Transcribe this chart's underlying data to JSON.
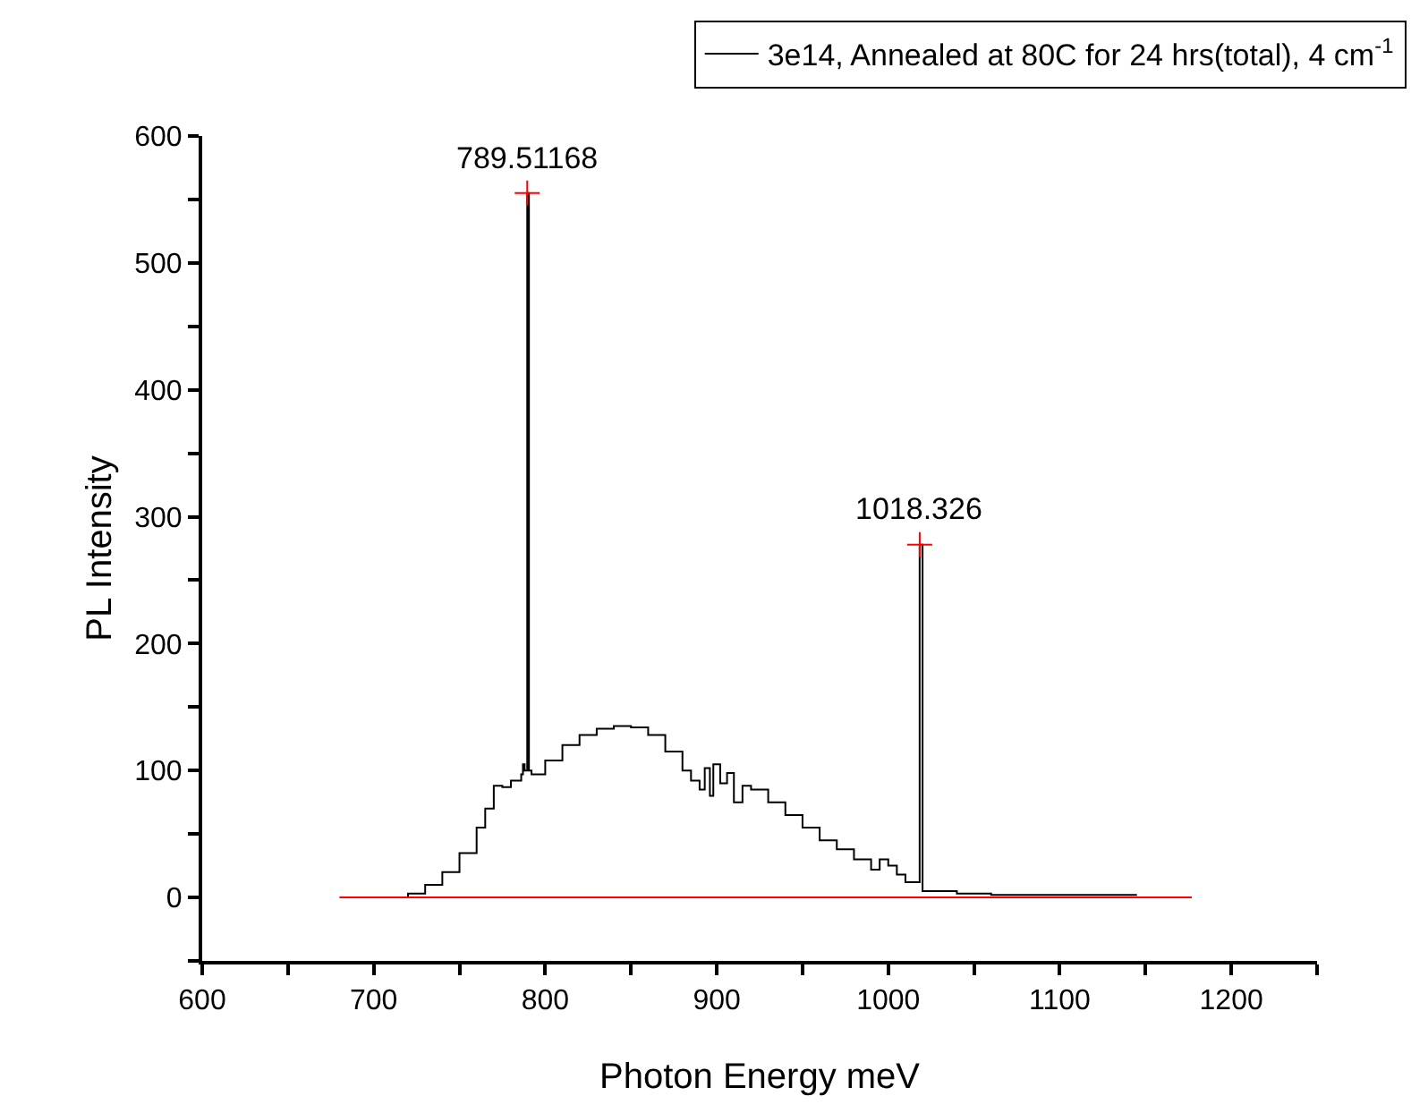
{
  "chart_data": {
    "type": "step",
    "xlabel": "Photon Energy meV",
    "ylabel": "PL Intensity",
    "xlim": [
      600,
      1250
    ],
    "ylim": [
      -50,
      600
    ],
    "xticks": [
      600,
      {
        "value": 650,
        "label": null
      },
      700,
      {
        "value": 750,
        "label": null
      },
      800,
      {
        "value": 850,
        "label": null
      },
      900,
      {
        "value": 950,
        "label": null
      },
      1000,
      {
        "value": 1050,
        "label": null
      },
      1100,
      {
        "value": 1150,
        "label": null
      },
      1200,
      {
        "value": 1250,
        "label": null
      }
    ],
    "yticks": [
      {
        "value": -50,
        "label": null
      },
      0,
      {
        "value": 50,
        "label": null
      },
      100,
      {
        "value": 150,
        "label": null
      },
      200,
      {
        "value": 250,
        "label": null
      },
      300,
      {
        "value": 350,
        "label": null
      },
      400,
      {
        "value": 450,
        "label": null
      },
      500,
      {
        "value": 550,
        "label": null
      },
      600
    ],
    "grid": false,
    "legend": "top right",
    "series": [
      {
        "name": "3e14, Annealed at 80C for 24 hrs(total), 4 cm$^{-1}$",
        "color": "#000000",
        "x": [
          708,
          720,
          730,
          740,
          750,
          760,
          765,
          770,
          775,
          780,
          786,
          787,
          788,
          789.5,
          790.5,
          792,
          800,
          810,
          820,
          830,
          840,
          850,
          860,
          870,
          880,
          885,
          890,
          893,
          896,
          898,
          902,
          906,
          910,
          915,
          920,
          930,
          940,
          950,
          960,
          970,
          980,
          990,
          995,
          1000,
          1005,
          1010,
          1015,
          1018.3,
          1020,
          1030,
          1040,
          1060,
          1100,
          1145
        ],
        "values": [
          0,
          3,
          10,
          20,
          35,
          55,
          70,
          88,
          87,
          92,
          97,
          105,
          100,
          555,
          100,
          97,
          108,
          120,
          128,
          133,
          135,
          134,
          128,
          115,
          100,
          92,
          85,
          102,
          80,
          105,
          90,
          98,
          75,
          88,
          85,
          75,
          65,
          55,
          45,
          38,
          30,
          22,
          30,
          25,
          18,
          12,
          12,
          278,
          5,
          5,
          3,
          2,
          2,
          2
        ]
      },
      {
        "type": "line",
        "color": "#ff0000",
        "x": [
          680,
          1177
        ],
        "values": [
          0,
          0
        ]
      },
      {
        "type": "scatter",
        "color": "#ff0000",
        "marker": "cross",
        "x": [
          789.51168,
          1018.326
        ],
        "values": [
          555,
          278
        ]
      }
    ],
    "annotations": [
      {
        "text": "789.51168",
        "x": 789.51168,
        "y": 555
      },
      {
        "text": "1018.326",
        "x": 1018.326,
        "y": 278
      }
    ]
  }
}
